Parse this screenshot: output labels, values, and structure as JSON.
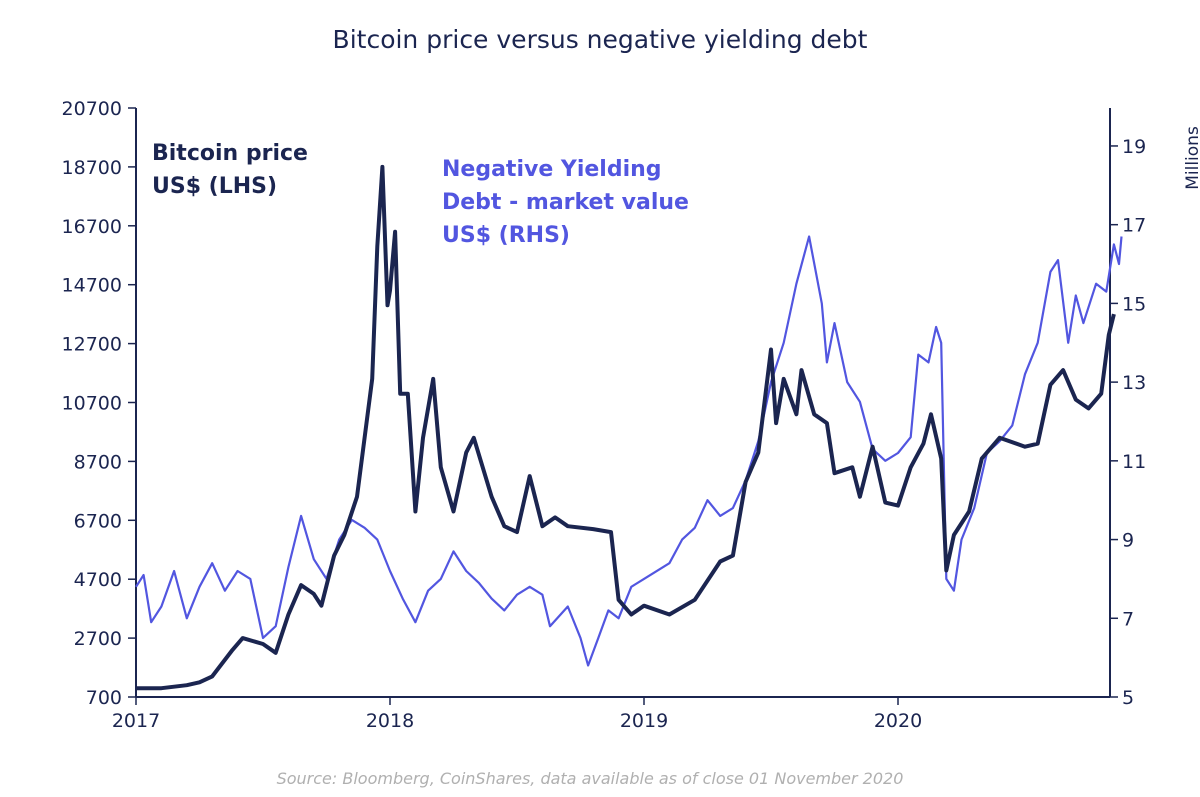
{
  "chart_data": {
    "type": "line",
    "title": "Bitcoin price versus negative yielding debt",
    "source": "Source: Bloomberg, CoinShares, data available as of close 01 November 2020",
    "xlim": [
      2017,
      2020.88
    ],
    "x_ticks": [
      "2017",
      "2018",
      "2019",
      "2020"
    ],
    "y_left": {
      "lim": [
        700,
        20700
      ],
      "ticks": [
        700,
        2700,
        4700,
        6700,
        8700,
        10700,
        12700,
        14700,
        16700,
        18700,
        20700
      ]
    },
    "y_right": {
      "lim": [
        5,
        20
      ],
      "ticks": [
        5,
        7,
        9,
        11,
        13,
        15,
        17,
        19
      ],
      "label": "Millions"
    },
    "grid": false,
    "series": [
      {
        "name": "Bitcoin price US$ (LHS)",
        "axis": "left",
        "color": "#1b2550",
        "x": [
          2017.0,
          2017.1,
          2017.2,
          2017.25,
          2017.3,
          2017.38,
          2017.42,
          2017.5,
          2017.55,
          2017.6,
          2017.65,
          2017.7,
          2017.73,
          2017.78,
          2017.82,
          2017.87,
          2017.9,
          2017.93,
          2017.95,
          2017.97,
          2017.99,
          2018.0,
          2018.02,
          2018.04,
          2018.07,
          2018.1,
          2018.13,
          2018.17,
          2018.2,
          2018.25,
          2018.3,
          2018.33,
          2018.4,
          2018.45,
          2018.5,
          2018.55,
          2018.6,
          2018.65,
          2018.7,
          2018.8,
          2018.87,
          2018.9,
          2018.95,
          2019.0,
          2019.1,
          2019.2,
          2019.3,
          2019.35,
          2019.4,
          2019.45,
          2019.5,
          2019.52,
          2019.55,
          2019.6,
          2019.62,
          2019.67,
          2019.72,
          2019.75,
          2019.82,
          2019.85,
          2019.9,
          2019.95,
          2020.0,
          2020.05,
          2020.1,
          2020.13,
          2020.17,
          2020.19,
          2020.22,
          2020.28,
          2020.33,
          2020.4,
          2020.5,
          2020.55,
          2020.6,
          2020.65,
          2020.7,
          2020.75,
          2020.8,
          2020.83,
          2020.85
        ],
        "values": [
          1000,
          1000,
          1100,
          1200,
          1400,
          2300,
          2700,
          2500,
          2200,
          3500,
          4500,
          4200,
          3800,
          5500,
          6200,
          7500,
          9500,
          11500,
          16000,
          18700,
          14000,
          14500,
          16500,
          11000,
          11000,
          7000,
          9500,
          11500,
          8500,
          7000,
          9000,
          9500,
          7500,
          6500,
          6300,
          8200,
          6500,
          6800,
          6500,
          6400,
          6300,
          4000,
          3500,
          3800,
          3500,
          4000,
          5300,
          5500,
          8000,
          9000,
          12500,
          10000,
          11500,
          10300,
          11800,
          10300,
          10000,
          8300,
          8500,
          7500,
          9200,
          7300,
          7200,
          8500,
          9300,
          10300,
          8800,
          5000,
          6200,
          7000,
          8800,
          9500,
          9200,
          9300,
          11300,
          11800,
          10800,
          10500,
          11000,
          13000,
          13700
        ]
      },
      {
        "name": "Negative Yielding Debt - market value US$ (RHS)",
        "axis": "right",
        "color": "#5256e0",
        "x": [
          2017.0,
          2017.03,
          2017.06,
          2017.1,
          2017.15,
          2017.2,
          2017.25,
          2017.3,
          2017.35,
          2017.4,
          2017.45,
          2017.5,
          2017.55,
          2017.6,
          2017.65,
          2017.7,
          2017.75,
          2017.8,
          2017.85,
          2017.9,
          2017.95,
          2018.0,
          2018.05,
          2018.1,
          2018.15,
          2018.2,
          2018.25,
          2018.3,
          2018.35,
          2018.4,
          2018.45,
          2018.5,
          2018.55,
          2018.6,
          2018.63,
          2018.7,
          2018.75,
          2018.78,
          2018.82,
          2018.86,
          2018.9,
          2018.95,
          2019.0,
          2019.1,
          2019.15,
          2019.2,
          2019.25,
          2019.3,
          2019.35,
          2019.4,
          2019.45,
          2019.5,
          2019.55,
          2019.6,
          2019.65,
          2019.7,
          2019.72,
          2019.75,
          2019.8,
          2019.85,
          2019.9,
          2019.95,
          2020.0,
          2020.05,
          2020.08,
          2020.12,
          2020.15,
          2020.17,
          2020.19,
          2020.22,
          2020.25,
          2020.3,
          2020.35,
          2020.4,
          2020.45,
          2020.5,
          2020.55,
          2020.6,
          2020.63,
          2020.67,
          2020.7,
          2020.73,
          2020.78,
          2020.82,
          2020.85,
          2020.87,
          2020.88
        ],
        "values": [
          7.8,
          8.1,
          6.9,
          7.3,
          8.2,
          7.0,
          7.8,
          8.4,
          7.7,
          8.2,
          8.0,
          6.5,
          6.8,
          8.3,
          9.6,
          8.5,
          8.0,
          9.0,
          9.5,
          9.3,
          9.0,
          8.2,
          7.5,
          6.9,
          7.7,
          8.0,
          8.7,
          8.2,
          7.9,
          7.5,
          7.2,
          7.6,
          7.8,
          7.6,
          6.8,
          7.3,
          6.5,
          5.8,
          6.5,
          7.2,
          7.0,
          7.8,
          8.0,
          8.4,
          9.0,
          9.3,
          10.0,
          9.6,
          9.8,
          10.5,
          11.5,
          13.0,
          14.0,
          15.5,
          16.7,
          15.0,
          13.5,
          14.5,
          13.0,
          12.5,
          11.3,
          11.0,
          11.2,
          11.6,
          13.7,
          13.5,
          14.4,
          14.0,
          8.0,
          7.7,
          9.0,
          9.8,
          11.2,
          11.5,
          11.9,
          13.2,
          14.0,
          15.8,
          16.1,
          14.0,
          15.2,
          14.5,
          15.5,
          15.3,
          16.5,
          16.0,
          16.7
        ]
      }
    ],
    "annotations": {
      "left_label": [
        "Bitcoin price",
        "US$ (LHS)"
      ],
      "right_label": [
        "Negative Yielding",
        "Debt - market value",
        "US$ (RHS)"
      ]
    }
  }
}
